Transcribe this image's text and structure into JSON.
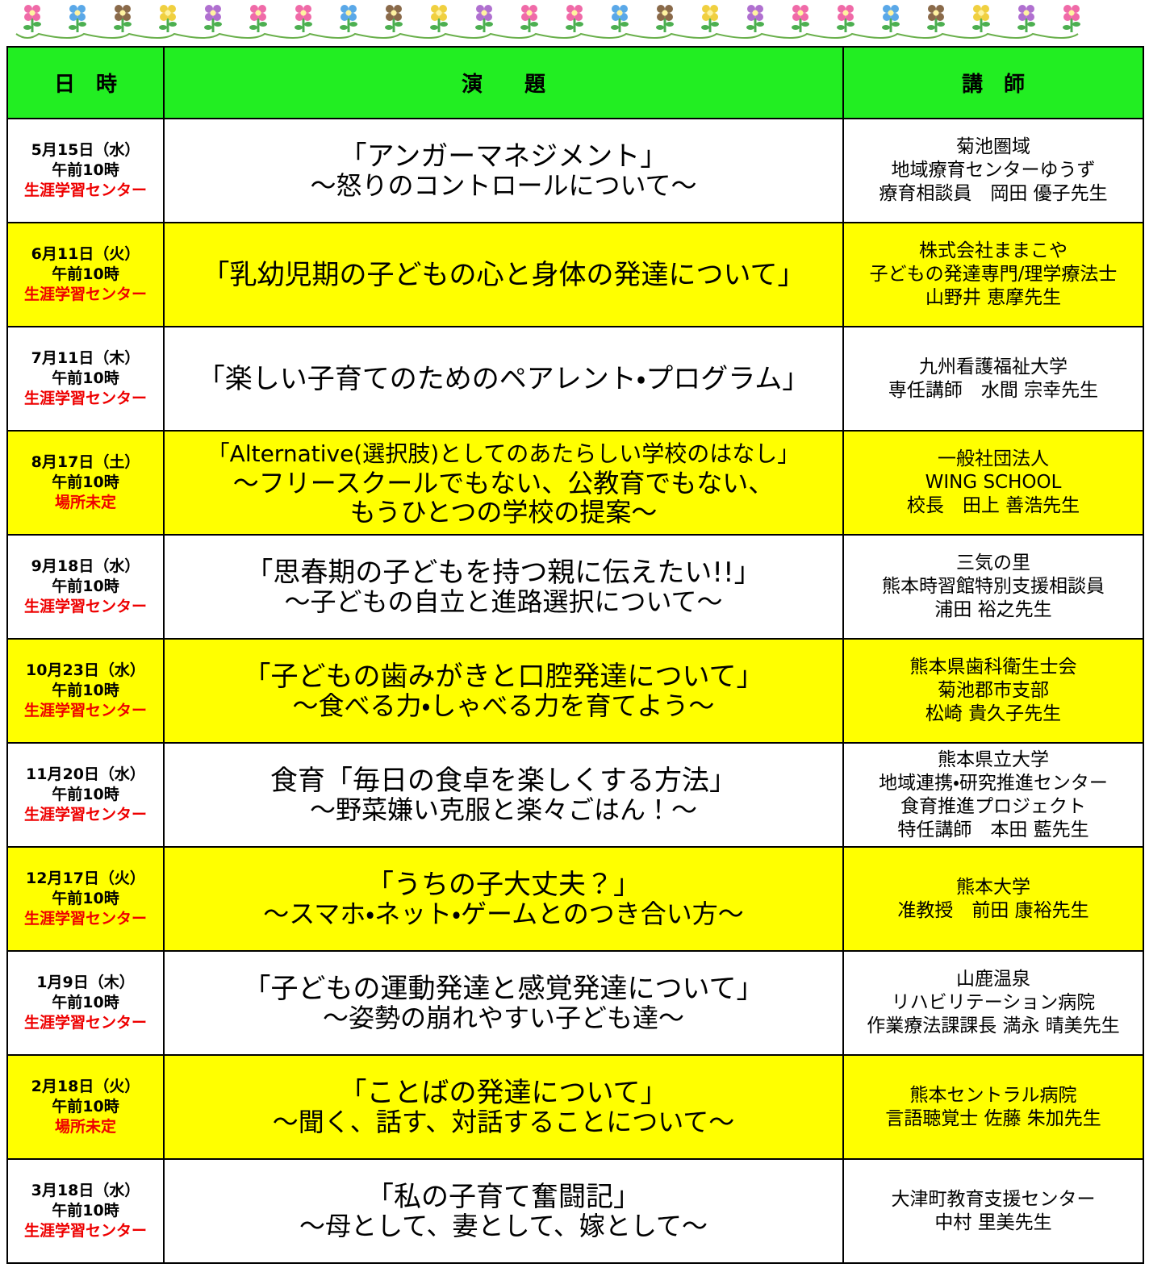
{
  "table": {
    "header": [
      "日　時",
      "演　　題",
      "講　師"
    ],
    "rows": [
      {
        "date": "5月15日（水）",
        "time": "午前10時",
        "place": "生涯学習センター",
        "title": [
          "「アンガーマネジメント」",
          "～怒りのコントロールについて～"
        ],
        "lecturer": [
          "菊池圏域",
          "地域療育センターゆうず",
          "療育相談員　岡田 優子先生"
        ]
      },
      {
        "date": "6月11日（火）",
        "time": "午前10時",
        "place": "生涯学習センター",
        "title": [
          "「乳幼児期の子どもの心と身体の発達について」"
        ],
        "lecturer": [
          "株式会社ままこや",
          "子どもの発達専門/理学療法士",
          "山野井 恵摩先生"
        ]
      },
      {
        "date": "7月11日（木）",
        "time": "午前10時",
        "place": "生涯学習センター",
        "title": [
          "「楽しい子育てのためのペアレント・プログラム」"
        ],
        "lecturer": [
          "九州看護福祉大学",
          "専任講師　水間 宗幸先生"
        ]
      },
      {
        "date": "8月17日（土）",
        "time": "午前10時",
        "place": "場所未定",
        "title": [
          "「Alternative(選択肢)としてのあたらしい学校のはなし」",
          "～フリースクールでもない、公教育でもない、",
          "もうひとつの学校の提案～"
        ],
        "lecturer": [
          "一般社団法人",
          "WING SCHOOL",
          "校長　田上 善浩先生"
        ]
      },
      {
        "date": "9月18日（水）",
        "time": "午前10時",
        "place": "生涯学習センター",
        "title": [
          "「思春期の子どもを持つ親に伝えたい!!」",
          "～子どもの自立と進路選択について～"
        ],
        "lecturer": [
          "三気の里",
          "熊本時習館特別支援相談員",
          "浦田 裕之先生"
        ]
      },
      {
        "date": "10月23日（水）",
        "time": "午前10時",
        "place": "生涯学習センター",
        "title": [
          "「子どもの歯みがきと口腔発達について」",
          "～食べる力・しゃべる力を育てよう～"
        ],
        "lecturer": [
          "熊本県歯科衛生士会",
          "菊池郡市支部",
          "松崎 貴久子先生"
        ]
      },
      {
        "date": "11月20日（水）",
        "time": "午前10時",
        "place": "生涯学習センター",
        "title": [
          "食育「毎日の食卓を楽しくする方法」",
          "～野菜嫌い克服と楽々ごはん！～"
        ],
        "lecturer": [
          "熊本県立大学",
          "地域連携・研究推進センター",
          "食育推進プロジェクト",
          "特任講師　本田 藍先生"
        ]
      },
      {
        "date": "12月17日（火）",
        "time": "午前10時",
        "place": "生涯学習センター",
        "title": [
          "「うちの子大丈夫？」",
          "～スマホ・ネット・ゲームとのつき合い方～"
        ],
        "lecturer": [
          "熊本大学",
          "准教授　前田 康裕先生"
        ]
      },
      {
        "date": "1月9日（木）",
        "time": "午前10時",
        "place": "生涯学習センター",
        "title": [
          "「子どもの運動発達と感覚発達について」",
          "～姿勢の崩れやすい子ども達～"
        ],
        "lecturer": [
          "山鹿温泉",
          "リハビリテーション病院",
          "作業療法課課長 満永 晴美先生"
        ]
      },
      {
        "date": "2月18日（火）",
        "time": "午前10時",
        "place": "場所未定",
        "title": [
          "「ことばの発達について」",
          "～聞く、話す、対話することについて～"
        ],
        "lecturer": [
          "熊本セントラル病院",
          "言語聴覚士 佐藤 朱加先生"
        ]
      },
      {
        "date": "3月18日（水）",
        "time": "午前10時",
        "place": "生涯学習センター",
        "title": [
          "「私の子育て奮闘記」",
          "～母として、妻として、嫁として～"
        ],
        "lecturer": [
          "大津町教育支援センター",
          "中村 里美先生"
        ]
      }
    ]
  }
}
